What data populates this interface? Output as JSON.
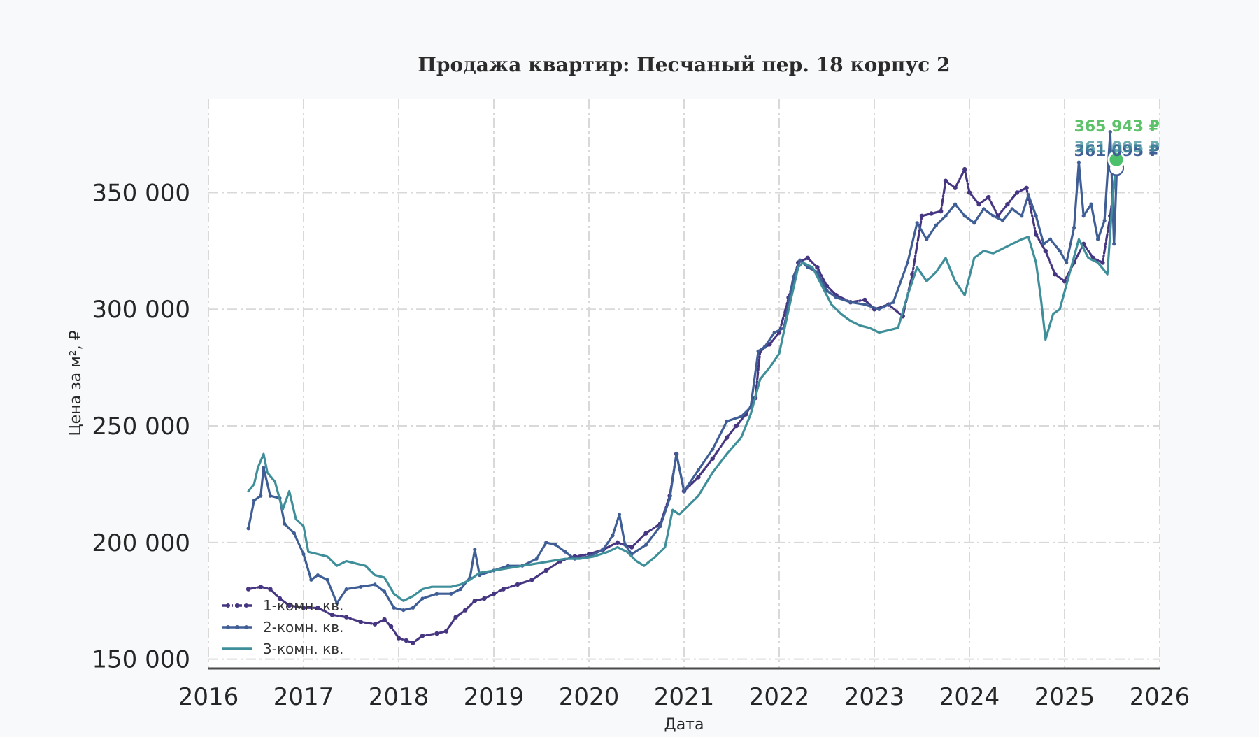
{
  "chart_data": {
    "type": "line",
    "title": "Продажа квартир: Песчаный пер. 18 корпус 2",
    "xlabel": "Дата",
    "ylabel": "Цена за м², ₽",
    "xlim": [
      2016,
      2026
    ],
    "ylim": [
      146000,
      390000
    ],
    "x_ticks": [
      2016,
      2017,
      2018,
      2019,
      2020,
      2021,
      2022,
      2023,
      2024,
      2025,
      2026
    ],
    "x_tick_labels": [
      "2016",
      "2017",
      "2018",
      "2019",
      "2020",
      "2021",
      "2022",
      "2023",
      "2024",
      "2025",
      "2026"
    ],
    "y_ticks": [
      150000,
      200000,
      250000,
      300000,
      350000
    ],
    "y_tick_labels": [
      "150 000",
      "200 000",
      "250 000",
      "300 000",
      "350 000"
    ],
    "grid": true,
    "legend_position": "bottom-left",
    "series": [
      {
        "name": "1-комн. кв.",
        "color": "#463580",
        "style": "dash-dot-markers",
        "points": [
          [
            2016.42,
            180000
          ],
          [
            2016.55,
            181000
          ],
          [
            2016.65,
            180000
          ],
          [
            2016.75,
            176000
          ],
          [
            2016.85,
            173000
          ],
          [
            2017.0,
            172000
          ],
          [
            2017.15,
            172000
          ],
          [
            2017.3,
            169000
          ],
          [
            2017.45,
            168000
          ],
          [
            2017.6,
            166000
          ],
          [
            2017.75,
            165000
          ],
          [
            2017.85,
            167000
          ],
          [
            2017.92,
            164000
          ],
          [
            2018.0,
            159000
          ],
          [
            2018.08,
            158000
          ],
          [
            2018.15,
            157000
          ],
          [
            2018.25,
            160000
          ],
          [
            2018.4,
            161000
          ],
          [
            2018.5,
            162000
          ],
          [
            2018.6,
            168000
          ],
          [
            2018.7,
            171000
          ],
          [
            2018.8,
            175000
          ],
          [
            2018.9,
            176000
          ],
          [
            2019.0,
            178000
          ],
          [
            2019.1,
            180000
          ],
          [
            2019.25,
            182000
          ],
          [
            2019.4,
            184000
          ],
          [
            2019.55,
            188000
          ],
          [
            2019.7,
            192000
          ],
          [
            2019.85,
            194000
          ],
          [
            2020.0,
            195000
          ],
          [
            2020.15,
            197000
          ],
          [
            2020.3,
            200000
          ],
          [
            2020.45,
            198000
          ],
          [
            2020.6,
            204000
          ],
          [
            2020.75,
            208000
          ],
          [
            2020.85,
            220000
          ],
          [
            2020.92,
            238000
          ],
          [
            2021.0,
            222000
          ],
          [
            2021.15,
            228000
          ],
          [
            2021.3,
            236000
          ],
          [
            2021.45,
            245000
          ],
          [
            2021.55,
            250000
          ],
          [
            2021.65,
            255000
          ],
          [
            2021.75,
            262000
          ],
          [
            2021.8,
            282000
          ],
          [
            2021.9,
            285000
          ],
          [
            2022.0,
            290000
          ],
          [
            2022.1,
            305000
          ],
          [
            2022.2,
            320000
          ],
          [
            2022.3,
            322000
          ],
          [
            2022.4,
            318000
          ],
          [
            2022.5,
            310000
          ],
          [
            2022.6,
            306000
          ],
          [
            2022.75,
            303000
          ],
          [
            2022.9,
            304000
          ],
          [
            2023.0,
            300000
          ],
          [
            2023.15,
            302000
          ],
          [
            2023.3,
            297000
          ],
          [
            2023.4,
            315000
          ],
          [
            2023.5,
            340000
          ],
          [
            2023.6,
            341000
          ],
          [
            2023.7,
            342000
          ],
          [
            2023.75,
            355000
          ],
          [
            2023.85,
            352000
          ],
          [
            2023.95,
            360000
          ],
          [
            2024.0,
            350000
          ],
          [
            2024.1,
            345000
          ],
          [
            2024.2,
            348000
          ],
          [
            2024.3,
            340000
          ],
          [
            2024.4,
            345000
          ],
          [
            2024.5,
            350000
          ],
          [
            2024.6,
            352000
          ],
          [
            2024.7,
            332000
          ],
          [
            2024.8,
            325000
          ],
          [
            2024.9,
            315000
          ],
          [
            2025.0,
            312000
          ],
          [
            2025.1,
            320000
          ],
          [
            2025.2,
            328000
          ],
          [
            2025.3,
            322000
          ],
          [
            2025.4,
            320000
          ],
          [
            2025.48,
            340000
          ],
          [
            2025.55,
            363000
          ]
        ],
        "last_value": 361095,
        "last_label": "361 095 ₽"
      },
      {
        "name": "2-комн. кв.",
        "color": "#3f5e96",
        "style": "solid-small-markers",
        "points": [
          [
            2016.42,
            206000
          ],
          [
            2016.48,
            218000
          ],
          [
            2016.55,
            220000
          ],
          [
            2016.58,
            232000
          ],
          [
            2016.65,
            220000
          ],
          [
            2016.75,
            219000
          ],
          [
            2016.8,
            208000
          ],
          [
            2016.9,
            204000
          ],
          [
            2017.0,
            195000
          ],
          [
            2017.08,
            184000
          ],
          [
            2017.15,
            186000
          ],
          [
            2017.25,
            184000
          ],
          [
            2017.35,
            174000
          ],
          [
            2017.45,
            180000
          ],
          [
            2017.6,
            181000
          ],
          [
            2017.75,
            182000
          ],
          [
            2017.85,
            179000
          ],
          [
            2017.95,
            172000
          ],
          [
            2018.05,
            171000
          ],
          [
            2018.15,
            172000
          ],
          [
            2018.25,
            176000
          ],
          [
            2018.4,
            178000
          ],
          [
            2018.55,
            178000
          ],
          [
            2018.65,
            180000
          ],
          [
            2018.75,
            185000
          ],
          [
            2018.8,
            197000
          ],
          [
            2018.85,
            186000
          ],
          [
            2019.0,
            188000
          ],
          [
            2019.15,
            190000
          ],
          [
            2019.3,
            190000
          ],
          [
            2019.45,
            193000
          ],
          [
            2019.55,
            200000
          ],
          [
            2019.65,
            199000
          ],
          [
            2019.75,
            196000
          ],
          [
            2019.85,
            193000
          ],
          [
            2020.0,
            194000
          ],
          [
            2020.15,
            197000
          ],
          [
            2020.25,
            203000
          ],
          [
            2020.32,
            212000
          ],
          [
            2020.38,
            199000
          ],
          [
            2020.45,
            195000
          ],
          [
            2020.6,
            199000
          ],
          [
            2020.75,
            207000
          ],
          [
            2020.85,
            219000
          ],
          [
            2020.92,
            238000
          ],
          [
            2021.0,
            222000
          ],
          [
            2021.15,
            231000
          ],
          [
            2021.3,
            240000
          ],
          [
            2021.45,
            252000
          ],
          [
            2021.6,
            254000
          ],
          [
            2021.7,
            258000
          ],
          [
            2021.78,
            282000
          ],
          [
            2021.85,
            284000
          ],
          [
            2021.95,
            290000
          ],
          [
            2022.05,
            292000
          ],
          [
            2022.15,
            314000
          ],
          [
            2022.22,
            321000
          ],
          [
            2022.3,
            318000
          ],
          [
            2022.4,
            316000
          ],
          [
            2022.5,
            308000
          ],
          [
            2022.6,
            305000
          ],
          [
            2022.75,
            303000
          ],
          [
            2022.9,
            302000
          ],
          [
            2023.05,
            300000
          ],
          [
            2023.2,
            303000
          ],
          [
            2023.35,
            320000
          ],
          [
            2023.45,
            337000
          ],
          [
            2023.55,
            330000
          ],
          [
            2023.65,
            336000
          ],
          [
            2023.75,
            340000
          ],
          [
            2023.85,
            345000
          ],
          [
            2023.95,
            340000
          ],
          [
            2024.05,
            337000
          ],
          [
            2024.15,
            343000
          ],
          [
            2024.25,
            340000
          ],
          [
            2024.35,
            338000
          ],
          [
            2024.45,
            343000
          ],
          [
            2024.55,
            340000
          ],
          [
            2024.62,
            349000
          ],
          [
            2024.7,
            340000
          ],
          [
            2024.78,
            328000
          ],
          [
            2024.85,
            330000
          ],
          [
            2024.95,
            325000
          ],
          [
            2025.02,
            320000
          ],
          [
            2025.1,
            335000
          ],
          [
            2025.15,
            363000
          ],
          [
            2025.2,
            340000
          ],
          [
            2025.28,
            345000
          ],
          [
            2025.35,
            330000
          ],
          [
            2025.42,
            338000
          ],
          [
            2025.48,
            376000
          ],
          [
            2025.52,
            328000
          ],
          [
            2025.55,
            361000
          ]
        ],
        "last_value": 361095,
        "last_label": "361 095 ₽"
      },
      {
        "name": "3-комн. кв.",
        "color": "#3f8f9a",
        "style": "solid",
        "points": [
          [
            2016.42,
            222000
          ],
          [
            2016.48,
            225000
          ],
          [
            2016.52,
            232000
          ],
          [
            2016.58,
            238000
          ],
          [
            2016.62,
            230000
          ],
          [
            2016.7,
            226000
          ],
          [
            2016.78,
            214000
          ],
          [
            2016.85,
            222000
          ],
          [
            2016.92,
            210000
          ],
          [
            2017.0,
            207000
          ],
          [
            2017.05,
            196000
          ],
          [
            2017.15,
            195000
          ],
          [
            2017.25,
            194000
          ],
          [
            2017.35,
            190000
          ],
          [
            2017.45,
            192000
          ],
          [
            2017.55,
            191000
          ],
          [
            2017.65,
            190000
          ],
          [
            2017.75,
            186000
          ],
          [
            2017.85,
            185000
          ],
          [
            2017.95,
            178000
          ],
          [
            2018.05,
            175000
          ],
          [
            2018.15,
            177000
          ],
          [
            2018.25,
            180000
          ],
          [
            2018.35,
            181000
          ],
          [
            2018.45,
            181000
          ],
          [
            2018.55,
            181000
          ],
          [
            2018.65,
            182000
          ],
          [
            2018.75,
            184000
          ],
          [
            2018.85,
            187000
          ],
          [
            2019.0,
            188000
          ],
          [
            2019.15,
            189000
          ],
          [
            2019.3,
            190000
          ],
          [
            2019.45,
            191000
          ],
          [
            2019.6,
            192000
          ],
          [
            2019.75,
            193000
          ],
          [
            2019.9,
            193000
          ],
          [
            2020.05,
            194000
          ],
          [
            2020.2,
            196000
          ],
          [
            2020.3,
            198000
          ],
          [
            2020.4,
            196000
          ],
          [
            2020.5,
            192000
          ],
          [
            2020.58,
            190000
          ],
          [
            2020.7,
            194000
          ],
          [
            2020.8,
            198000
          ],
          [
            2020.88,
            214000
          ],
          [
            2020.95,
            212000
          ],
          [
            2021.05,
            216000
          ],
          [
            2021.15,
            220000
          ],
          [
            2021.3,
            230000
          ],
          [
            2021.45,
            238000
          ],
          [
            2021.6,
            245000
          ],
          [
            2021.7,
            255000
          ],
          [
            2021.8,
            270000
          ],
          [
            2021.9,
            275000
          ],
          [
            2022.0,
            281000
          ],
          [
            2022.1,
            300000
          ],
          [
            2022.2,
            318000
          ],
          [
            2022.25,
            320000
          ],
          [
            2022.35,
            318000
          ],
          [
            2022.45,
            310000
          ],
          [
            2022.55,
            302000
          ],
          [
            2022.65,
            298000
          ],
          [
            2022.75,
            295000
          ],
          [
            2022.85,
            293000
          ],
          [
            2022.95,
            292000
          ],
          [
            2023.05,
            290000
          ],
          [
            2023.15,
            291000
          ],
          [
            2023.25,
            292000
          ],
          [
            2023.35,
            306000
          ],
          [
            2023.45,
            318000
          ],
          [
            2023.55,
            312000
          ],
          [
            2023.65,
            316000
          ],
          [
            2023.75,
            322000
          ],
          [
            2023.85,
            312000
          ],
          [
            2023.95,
            306000
          ],
          [
            2024.05,
            322000
          ],
          [
            2024.15,
            325000
          ],
          [
            2024.25,
            324000
          ],
          [
            2024.35,
            326000
          ],
          [
            2024.45,
            328000
          ],
          [
            2024.55,
            330000
          ],
          [
            2024.62,
            331000
          ],
          [
            2024.7,
            320000
          ],
          [
            2024.75,
            305000
          ],
          [
            2024.8,
            287000
          ],
          [
            2024.88,
            298000
          ],
          [
            2024.95,
            300000
          ],
          [
            2025.05,
            315000
          ],
          [
            2025.15,
            330000
          ],
          [
            2025.25,
            322000
          ],
          [
            2025.35,
            320000
          ],
          [
            2025.45,
            315000
          ],
          [
            2025.5,
            345000
          ],
          [
            2025.55,
            366000
          ]
        ],
        "last_value": 365943,
        "last_label": "365 943 ₽"
      }
    ],
    "end_label_primary": "365 943 ₽",
    "end_label_primary_color": "#5ec26a",
    "end_marker_color": "#4cc06a"
  }
}
